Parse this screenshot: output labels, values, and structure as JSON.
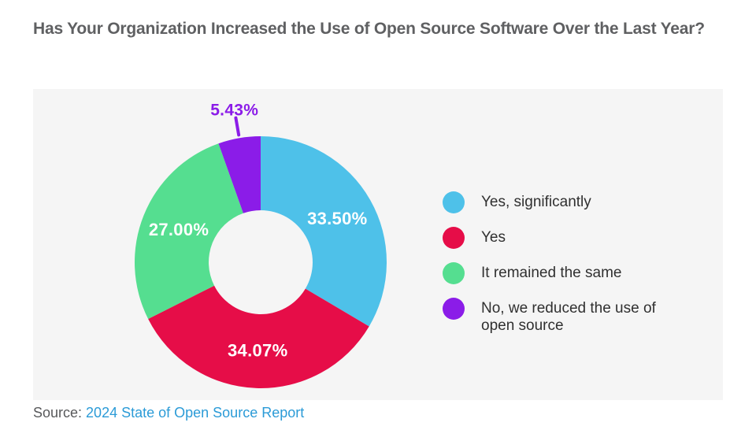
{
  "page": {
    "title": "Has Your Organization Increased the Use of Open Source Software Over the Last Year?",
    "source_label": "Source:",
    "source_link_text": "2024 State of Open Source Report"
  },
  "colors": {
    "title_text": "#5f6062",
    "panel_bg": "#f5f5f5",
    "legend_text": "#303030",
    "source_text": "#58595b",
    "link": "#2b9bd7"
  },
  "chart_data": {
    "type": "pie",
    "donut": true,
    "title": "Has Your Organization Increased the Use of Open Source Software Over the Last Year?",
    "start_angle_deg": 0,
    "direction": "clockwise",
    "legend_position": "right",
    "labels_note": "percent labels shown in white inside slices; slices under 10% labeled outside in slice color with a leader line",
    "segments": [
      {
        "label": "Yes, significantly",
        "value": 33.5,
        "display": "33.50%",
        "color": "#4ec1e9"
      },
      {
        "label": "Yes",
        "value": 34.07,
        "display": "34.07%",
        "color": "#e60d48"
      },
      {
        "label": "It remained the same",
        "value": 27.0,
        "display": "27.00%",
        "color": "#55de90"
      },
      {
        "label": "No, we reduced the use of open source",
        "value": 5.43,
        "display": "5.43%",
        "color": "#8b1ce8"
      }
    ]
  }
}
